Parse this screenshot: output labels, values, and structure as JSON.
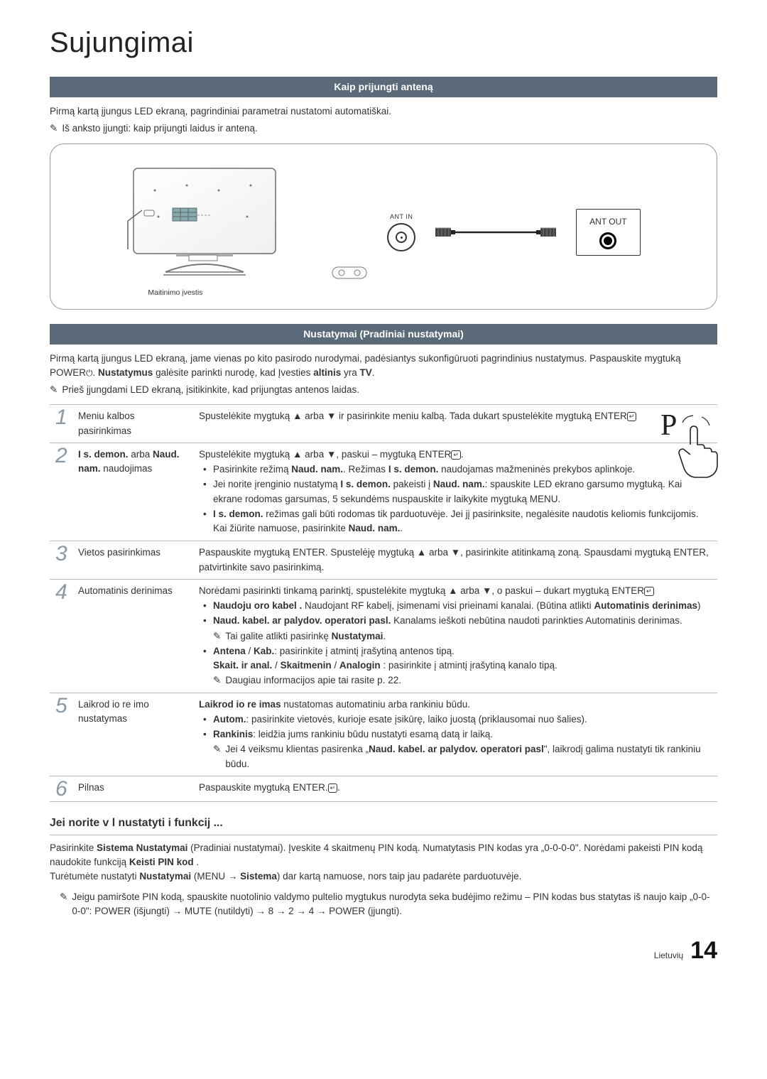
{
  "page": {
    "lang": "Lietuvių",
    "number": "14"
  },
  "title": "Sujungimai",
  "section1": {
    "heading": "Kaip prijungti anteną",
    "intro": "Pirmą kartą įjungus LED ekraną, pagrindiniai parametrai nustatomi automatiškai.",
    "pre_note": "Iš anksto įjungti: kaip prijungti laidus ir anteną.",
    "diagram": {
      "ant_in": "ANT IN",
      "ant_out": "ANT OUT",
      "power_caption": "Maitinimo įvestis"
    }
  },
  "section2": {
    "heading": "Nustatymai (Pradiniai nustatymai)",
    "intro1_before": "Pirmą kartą įjungus LED ekraną, jame vienas po kito pasirodo nurodymai, padėsiantys sukonfigūruoti pagrindinius nustatymus. Paspauskite mygtuką POWER",
    "intro1_mid": ". ",
    "intro1_bold": "Nustatymus",
    "intro1_after1": " galėsite parinkti nurodę, kad Įvesties  ",
    "intro1_bold2": "altinis",
    "intro1_after2": " yra ",
    "intro1_bold3": "TV",
    "intro1_end": ".",
    "pre_note": "Prieš įjungdami LED ekraną, įsitikinkite, kad prijungtas antenos laidas."
  },
  "steps": [
    {
      "num": "1",
      "label": "Meniu kalbos pasirinkimas",
      "body": "Spustelėkite mygtuką ▲ arba ▼ ir pasirinkite meniu kalbą. Tada dukart spustelėkite mygtuką ENTER"
    },
    {
      "num": "2",
      "label_a": "I s. demon.",
      "label_mid": " arba ",
      "label_b": "Naud. nam.",
      "label_end": " naudojimas",
      "lead": "Spustelėkite mygtuką ▲ arba ▼, paskui – mygtuką ENTER",
      "items": [
        "Pasirinkite režimą <b>Naud. nam.</b>. Režimas <b>I s. demon.</b> naudojamas mažmeninės prekybos aplinkoje.",
        "Jei norite įrenginio nustatymą <b>I s. demon.</b> pakeisti į <b>Naud. nam.</b>: spauskite LED ekrano garsumo mygtuką. Kai ekrane rodomas garsumas, 5 sekundėms nuspauskite ir laikykite mygtuką MENU.",
        "<b>I s. demon.</b> režimas gali būti rodomas tik parduotuvėje. Jei jį pasirinksite, negalėsite naudotis keliomis funkcijomis. Kai žiūrite namuose, pasirinkite <b>Naud. nam.</b>."
      ]
    },
    {
      "num": "3",
      "label": "Vietos pasirinkimas",
      "body": "Paspauskite mygtuką ENTER. Spustelėję mygtuką ▲ arba ▼, pasirinkite atitinkamą zoną. Spausdami mygtuką ENTER, patvirtinkite savo pasirinkimą."
    },
    {
      "num": "4",
      "label": "Automatinis derinimas",
      "lead": "Norėdami pasirinkti tinkamą parinktį, spustelėkite mygtuką ▲ arba ▼, o paskui – dukart mygtuką ENTER",
      "items": [
        "<b>Naudoju oro kabel .</b> Naudojant RF kabelį, įsimenami visi prieinami kanalai. (Būtina atlikti <b>Automatinis derinimas</b>)",
        "<b>Naud. kabel. ar palydov. operatori  pasl.</b> Kanalams ieškoti nebūtina naudoti parinkties Automatinis derinimas."
      ],
      "sub_note_1": "Tai galite atlikti pasirinkę <b>Nustatymai</b>.",
      "item3": "<b>Antena</b> / <b>Kab.</b>: pasirinkite į atmintį įrašytiną antenos tipą.<br><b>Skait. ir anal.</b> / <b>Skaitmenin</b>  / <b>Analogin</b> : pasirinkite į atmintį įrašytiną kanalo tipą.",
      "sub_note_2": "Daugiau informacijos apie tai rasite p. 22."
    },
    {
      "num": "5",
      "label": "Laikrod io re imo nustatymas",
      "lead": "<b>Laikrod io re imas</b> nustatomas automatiniu arba rankiniu būdu.",
      "items": [
        "<b>Autom.</b>: pasirinkite vietovės, kurioje esate įsikūrę, laiko juostą (priklausomai nuo šalies).",
        "<b>Rankinis</b>: leidžia jums rankiniu būdu nustatyti esamą datą ir laiką."
      ],
      "sub_note_1": "Jei 4 veiksmu klientas pasirenka „<b>Naud. kabel. ar palydov. operatori  pasl</b>\", laikrodį galima nustatyti tik rankiniu būdu."
    },
    {
      "num": "6",
      "label": "Pilnas",
      "body": "Paspauskite mygtuką ENTER."
    }
  ],
  "reset": {
    "heading": "Jei norite v l nustatyti i  funkcij ...",
    "p1_before": "Pasirinkite ",
    "p1_b1": "Sistema",
    "p1_mid1": "  ",
    "p1_b2": "Nustatymai",
    "p1_after": " (Pradiniai nustatymai). Įveskite 4 skaitmenų PIN kodą. Numatytasis PIN kodas yra „0-0-0-0\". Norėdami pakeisti PIN kodą naudokite funkciją ",
    "p1_b3": "Keisti PIN kod",
    "p1_end": " .",
    "p2_before": "Turėtumėte nustatyti ",
    "p2_b1": "Nustatymai",
    "p2_mid1": " (MENU → ",
    "p2_b2": "Sistema",
    "p2_after": ") dar kartą namuose, nors taip jau padarėte parduotuvėje.",
    "note": "Jeigu pamiršote PIN kodą, spauskite nuotolinio valdymo pultelio mygtukus nurodyta seka budėjimo režimu – PIN kodas bus statytas iš naujo kaip „0-0-0-0\": POWER (išjungti) → MUTE (nutildyti) → 8 → 2 → 4 → POWER (įjungti)."
  }
}
